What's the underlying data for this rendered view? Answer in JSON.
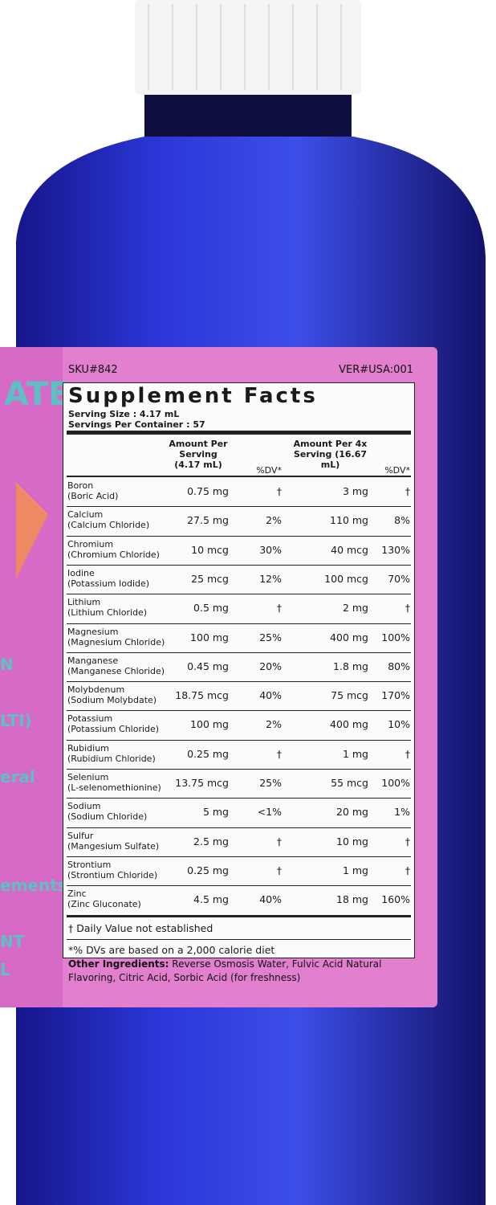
{
  "label": {
    "sku": "SKU#842",
    "ver": "VER#USA:001",
    "left_fragments": [
      "ATE",
      "N",
      "LTI)",
      "eral",
      "ements™",
      "NT",
      "L"
    ]
  },
  "facts": {
    "title": "Supplement Facts",
    "serving_size_label": "Serving Size",
    "serving_size": ": 4.17 mL",
    "servings_label": "Servings Per Container",
    "servings": ": 57",
    "headers": [
      "Amount Per Serving (4.17 mL)",
      "%DV*",
      "Amount Per 4x Serving (16.67 mL)",
      "%DV*"
    ],
    "rows": [
      [
        "Boron",
        "(Boric Acid)",
        "0.75 mg",
        "†",
        "3 mg",
        "†"
      ],
      [
        "Calcium",
        "(Calcium Chloride)",
        "27.5 mg",
        "2%",
        "110 mg",
        "8%"
      ],
      [
        "Chromium",
        "(Chromium Chloride)",
        "10 mcg",
        "30%",
        "40 mcg",
        "130%"
      ],
      [
        "Iodine",
        "(Potassium Iodide)",
        "25 mcg",
        "12%",
        "100 mcg",
        "70%"
      ],
      [
        "Lithium",
        "(Lithium Chloride)",
        "0.5 mg",
        "†",
        "2 mg",
        "†"
      ],
      [
        "Magnesium",
        "(Magnesium Chloride)",
        "100 mg",
        "25%",
        "400 mg",
        "100%"
      ],
      [
        "Manganese",
        "(Manganese Chloride)",
        "0.45 mg",
        "20%",
        "1.8 mg",
        "80%"
      ],
      [
        "Molybdenum",
        "(Sodium Molybdate)",
        "18.75 mcg",
        "40%",
        "75 mcg",
        "170%"
      ],
      [
        "Potassium",
        "(Potassium Chloride)",
        "100 mg",
        "2%",
        "400 mg",
        "10%"
      ],
      [
        "Rubidium",
        "(Rubidium Chloride)",
        "0.25 mg",
        "†",
        "1 mg",
        "†"
      ],
      [
        "Selenium",
        "(L-selenomethionine)",
        "13.75 mcg",
        "25%",
        "55 mcg",
        "100%"
      ],
      [
        "Sodium",
        "(Sodium Chloride)",
        "5 mg",
        "<1%",
        "20 mg",
        "1%"
      ],
      [
        "Sulfur",
        "(Mangesium Sulfate)",
        "2.5 mg",
        "†",
        "10 mg",
        "†"
      ],
      [
        "Strontium",
        "(Strontium Chloride)",
        "0.25 mg",
        "†",
        "1 mg",
        "†"
      ],
      [
        "Zinc",
        "(Zinc Gluconate)",
        "4.5 mg",
        "40%",
        "18 mg",
        "160%"
      ]
    ],
    "footnotes": [
      "† Daily Value not established",
      "*% DVs are based on a 2,000 calorie diet"
    ],
    "other_label": "Other Ingredients:",
    "other_text": "Reverse Osmosis Water, Fulvic Acid Natural Flavoring, Citric Acid, Sorbic Acid (for freshness)"
  }
}
